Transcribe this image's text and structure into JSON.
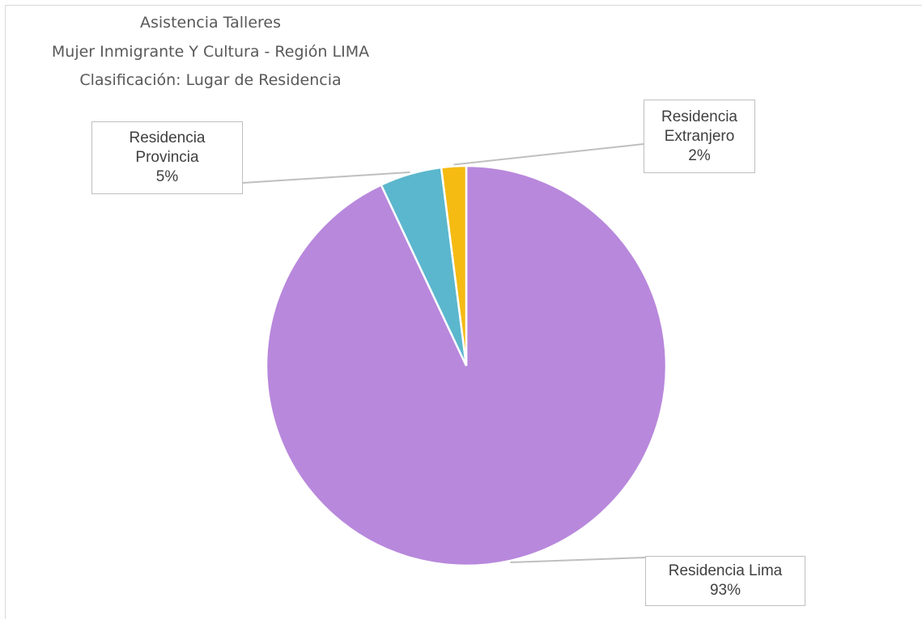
{
  "chart_data": {
    "type": "pie",
    "title": [
      "Asistencia Talleres",
      "Mujer Inmigrante Y Cultura  - Región LIMA",
      "Clasificación: Lugar de Residencia"
    ],
    "slices": [
      {
        "name": "Residencia Lima",
        "label_name": "Residencia Lima",
        "value": 93,
        "label": "93%",
        "color": "#b888dc"
      },
      {
        "name": "Residencia Provincia",
        "label_name_lines": [
          "Residencia",
          "Provincia"
        ],
        "value": 5,
        "label": "5%",
        "color": "#5bb7cd"
      },
      {
        "name": "Residencia Extranjero",
        "label_name_lines": [
          "Residencia",
          "Extranjero"
        ],
        "value": 2,
        "label": "2%",
        "color": "#f5bb12"
      }
    ],
    "start_angle": "12 o'clock",
    "direction": "clockwise",
    "legend": "none",
    "data_labels": "callouts"
  }
}
